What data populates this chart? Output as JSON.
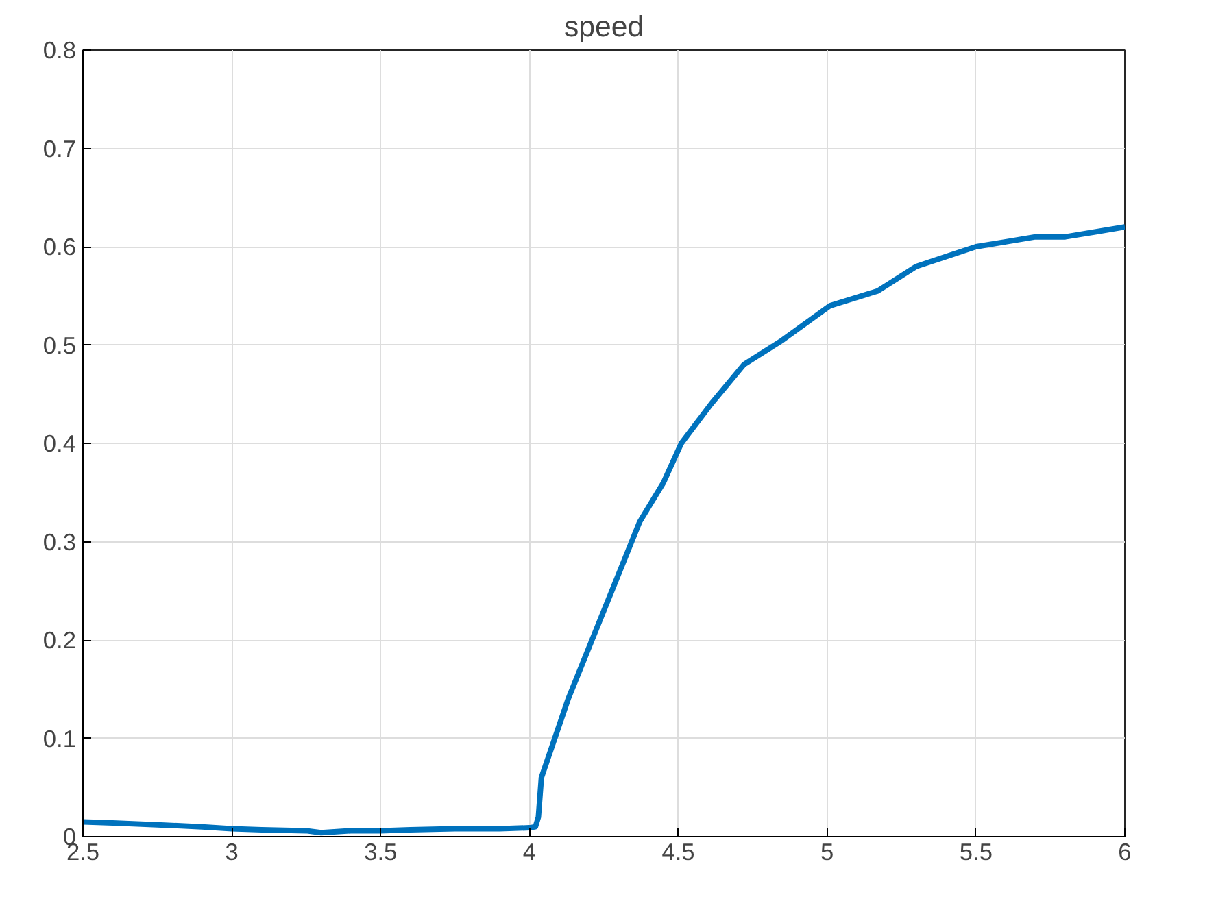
{
  "chart_data": {
    "type": "line",
    "title": "speed",
    "x": [
      2.5,
      2.6,
      2.75,
      2.9,
      3.0,
      3.1,
      3.25,
      3.3,
      3.4,
      3.5,
      3.6,
      3.75,
      3.9,
      4.0,
      4.02,
      4.03,
      4.04,
      4.13,
      4.21,
      4.29,
      4.37,
      4.45,
      4.51,
      4.61,
      4.72,
      4.85,
      5.01,
      5.17,
      5.3,
      5.4,
      5.5,
      5.6,
      5.7,
      5.8,
      5.9,
      6.0
    ],
    "series": [
      {
        "color": "#0072bd",
        "values": [
          0.015,
          0.014,
          0.012,
          0.01,
          0.008,
          0.007,
          0.006,
          0.004,
          0.006,
          0.006,
          0.007,
          0.008,
          0.008,
          0.009,
          0.01,
          0.02,
          0.06,
          0.14,
          0.2,
          0.26,
          0.32,
          0.36,
          0.4,
          0.44,
          0.48,
          0.505,
          0.54,
          0.555,
          0.58,
          0.59,
          0.6,
          0.605,
          0.61,
          0.61,
          0.615,
          0.62
        ]
      }
    ],
    "xlim": [
      2.5,
      6
    ],
    "ylim": [
      0,
      0.8
    ],
    "xticks": [
      2.5,
      3,
      3.5,
      4,
      4.5,
      5,
      5.5,
      6
    ],
    "yticks": [
      0,
      0.1,
      0.2,
      0.3,
      0.4,
      0.5,
      0.6,
      0.7,
      0.8
    ],
    "grid": true,
    "line_style": "solid"
  }
}
